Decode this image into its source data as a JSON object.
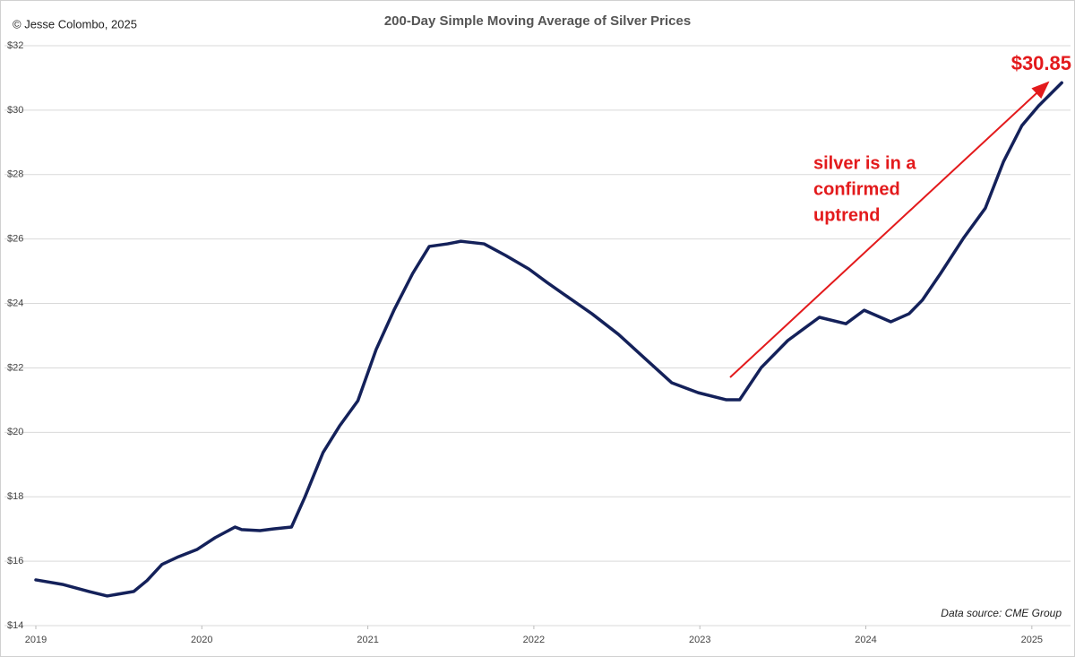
{
  "chart_data": {
    "type": "line",
    "title": "200-Day Simple Moving Average of Silver Prices",
    "copyright": "© Jesse Colombo, 2025",
    "source": "Data source: CME Group",
    "annotation_lines": [
      "silver is in a",
      "confirmed",
      "uptrend"
    ],
    "end_label": "$30.85",
    "x": [
      2019.0,
      2019.16,
      2019.32,
      2019.43,
      2019.59,
      2019.67,
      2019.76,
      2019.86,
      2019.97,
      2020.08,
      2020.2,
      2020.24,
      2020.35,
      2020.43,
      2020.54,
      2020.62,
      2020.73,
      2020.83,
      2020.94,
      2021.05,
      2021.16,
      2021.27,
      2021.37,
      2021.48,
      2021.56,
      2021.7,
      2021.83,
      2021.97,
      2022.08,
      2022.18,
      2022.35,
      2022.51,
      2022.67,
      2022.83,
      2022.99,
      2023.16,
      2023.24,
      2023.37,
      2023.53,
      2023.72,
      2023.88,
      2023.99,
      2024.15,
      2024.26,
      2024.34,
      2024.45,
      2024.59,
      2024.72,
      2024.83,
      2024.94,
      2025.04,
      2025.18
    ],
    "series": [
      {
        "name": "200-Day SMA",
        "color": "#14215a",
        "values": [
          15.42,
          15.28,
          15.06,
          14.92,
          15.06,
          15.4,
          15.9,
          16.14,
          16.36,
          16.73,
          17.06,
          16.98,
          16.95,
          17.0,
          17.06,
          17.98,
          19.37,
          20.2,
          20.98,
          22.57,
          23.82,
          24.93,
          25.77,
          25.85,
          25.93,
          25.85,
          25.49,
          25.07,
          24.65,
          24.29,
          23.68,
          23.04,
          22.29,
          21.54,
          21.23,
          21.01,
          21.01,
          22.01,
          22.85,
          23.57,
          23.37,
          23.79,
          23.43,
          23.68,
          24.1,
          24.93,
          26.04,
          26.96,
          28.41,
          29.52,
          30.13,
          30.85
        ]
      }
    ],
    "xlim": [
      2019,
      2025.233
    ],
    "xticks": [
      2019,
      2020,
      2021,
      2022,
      2023,
      2024,
      2025
    ],
    "ylim": [
      14,
      32
    ],
    "yticks": [
      {
        "value": 14,
        "label": "$14"
      },
      {
        "value": 16,
        "label": "$16"
      },
      {
        "value": 18,
        "label": "$18"
      },
      {
        "value": 20,
        "label": "$20"
      },
      {
        "value": 22,
        "label": "$22"
      },
      {
        "value": 24,
        "label": "$24"
      },
      {
        "value": 26,
        "label": "$26"
      },
      {
        "value": 28,
        "label": "$28"
      },
      {
        "value": 30,
        "label": "$30"
      },
      {
        "value": 32,
        "label": "$32"
      }
    ],
    "grid": true
  }
}
